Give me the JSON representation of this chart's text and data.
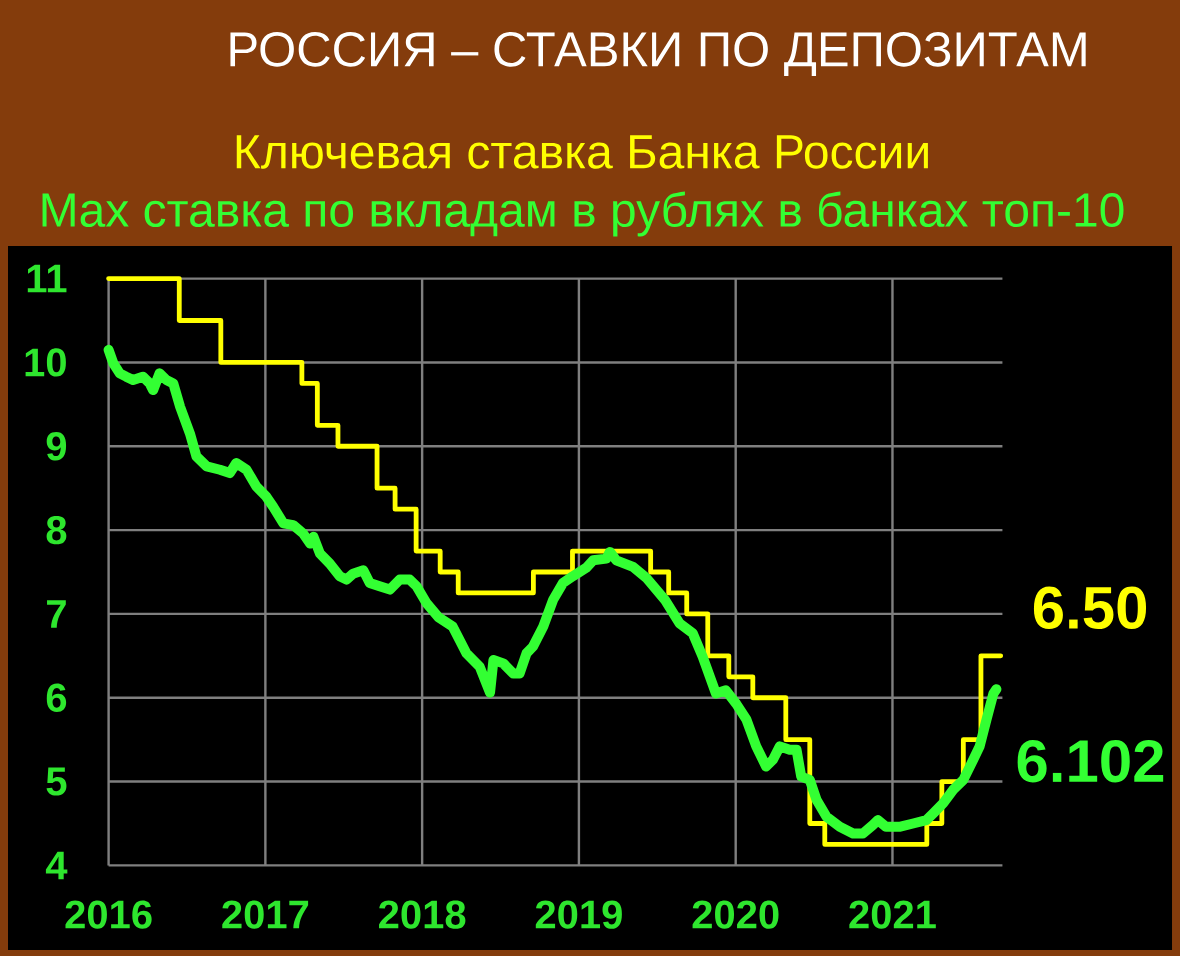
{
  "chart_data": {
    "type": "line",
    "title": "РОССИЯ – СТАВКИ ПО ДЕПОЗИТАМ",
    "legend": "top",
    "grid": true,
    "xlim": [
      "2016-01-01",
      "2021-09-14"
    ],
    "xticks": [
      "2016",
      "2017",
      "2018",
      "2019",
      "2020",
      "2021"
    ],
    "ylim": [
      4,
      11
    ],
    "yticks": [
      4,
      5,
      6,
      7,
      8,
      9,
      10,
      11
    ],
    "series": [
      {
        "name": "Ключевая ставка Банка России",
        "type": "step",
        "color": "#ffff00",
        "x": [
          "2016-01-01",
          "2016-06-14",
          "2016-09-19",
          "2017-03-27",
          "2017-05-02",
          "2017-06-19",
          "2017-09-18",
          "2017-10-30",
          "2017-12-18",
          "2018-02-12",
          "2018-03-26",
          "2018-09-17",
          "2018-12-17",
          "2019-06-17",
          "2019-07-29",
          "2019-09-09",
          "2019-10-28",
          "2019-12-16",
          "2020-02-10",
          "2020-04-27",
          "2020-06-22",
          "2020-07-27",
          "2021-03-22",
          "2021-04-26",
          "2021-06-15",
          "2021-07-26",
          "2021-09-10"
        ],
        "values": [
          11,
          10.5,
          10,
          9.75,
          9.25,
          9,
          8.5,
          8.25,
          7.75,
          7.5,
          7.25,
          7.5,
          7.75,
          7.5,
          7.25,
          7,
          6.5,
          6.25,
          6,
          5.5,
          4.5,
          4.25,
          4.5,
          5,
          5.5,
          6.5,
          6.5
        ],
        "value_labels": [
          null,
          null,
          null,
          null,
          null,
          null,
          null,
          null,
          null,
          null,
          null,
          null,
          null,
          null,
          null,
          null,
          null,
          null,
          null,
          null,
          null,
          null,
          null,
          null,
          null,
          null,
          "6.50"
        ]
      },
      {
        "name": "Max ставка по вкладам в рублях в банках топ-10",
        "color": "#33ff33",
        "x": [
          "2016-01-01",
          "2016-01-12",
          "2016-01-27",
          "2016-02-11",
          "2016-02-27",
          "2016-03-21",
          "2016-04-06",
          "2016-04-14",
          "2016-04-29",
          "2016-05-15",
          "2016-05-31",
          "2016-06-16",
          "2016-07-09",
          "2016-07-24",
          "2016-08-17",
          "2016-09-17",
          "2016-10-10",
          "2016-10-25",
          "2016-11-18",
          "2016-12-11",
          "2017-01-03",
          "2017-01-19",
          "2017-02-12",
          "2017-03-07",
          "2017-03-30",
          "2017-04-15",
          "2017-04-23",
          "2017-05-08",
          "2017-05-31",
          "2017-06-23",
          "2017-07-09",
          "2017-07-24",
          "2017-08-17",
          "2017-09-01",
          "2017-09-24",
          "2017-10-18",
          "2017-11-10",
          "2017-12-03",
          "2017-12-19",
          "2018-01-11",
          "2018-02-08",
          "2018-03-13",
          "2018-04-14",
          "2018-05-15",
          "2018-06-08",
          "2018-06-16",
          "2018-07-09",
          "2018-08-01",
          "2018-08-16",
          "2018-09-01",
          "2018-09-16",
          "2018-10-10",
          "2018-11-02",
          "2018-11-25",
          "2018-12-18",
          "2019-01-18",
          "2019-02-03",
          "2019-03-06",
          "2019-03-14",
          "2019-03-29",
          "2019-05-07",
          "2019-06-07",
          "2019-07-20",
          "2019-08-23",
          "2019-09-23",
          "2019-10-16",
          "2019-11-16",
          "2019-12-09",
          "2020-01-02",
          "2020-01-26",
          "2020-02-18",
          "2020-03-12",
          "2020-03-28",
          "2020-04-13",
          "2020-05-06",
          "2020-05-22",
          "2020-06-02",
          "2020-06-22",
          "2020-07-08",
          "2020-07-31",
          "2020-08-31",
          "2020-10-01",
          "2020-10-24",
          "2020-11-16",
          "2020-11-28",
          "2020-12-17",
          "2021-01-17",
          "2021-02-18",
          "2021-03-21",
          "2021-04-06",
          "2021-04-29",
          "2021-05-22",
          "2021-06-15",
          "2021-07-08",
          "2021-07-23",
          "2021-08-08",
          "2021-08-24",
          "2021-08-31"
        ],
        "values": [
          10.15,
          9.99,
          9.87,
          9.83,
          9.79,
          9.83,
          9.75,
          9.67,
          9.87,
          9.79,
          9.75,
          9.47,
          9.15,
          8.88,
          8.76,
          8.72,
          8.68,
          8.8,
          8.72,
          8.52,
          8.4,
          8.28,
          8.08,
          8.06,
          7.96,
          7.84,
          7.92,
          7.72,
          7.6,
          7.45,
          7.41,
          7.48,
          7.52,
          7.37,
          7.33,
          7.29,
          7.41,
          7.41,
          7.33,
          7.13,
          6.96,
          6.85,
          6.53,
          6.37,
          6.06,
          6.45,
          6.41,
          6.29,
          6.29,
          6.53,
          6.61,
          6.85,
          7.17,
          7.37,
          7.45,
          7.55,
          7.64,
          7.66,
          7.74,
          7.64,
          7.56,
          7.43,
          7.17,
          6.89,
          6.77,
          6.49,
          6.05,
          6.09,
          5.93,
          5.74,
          5.42,
          5.18,
          5.26,
          5.42,
          5.38,
          5.38,
          5.06,
          5.02,
          4.78,
          4.58,
          4.46,
          4.38,
          4.38,
          4.48,
          4.54,
          4.46,
          4.46,
          4.5,
          4.54,
          4.62,
          4.74,
          4.9,
          5.02,
          5.26,
          5.42,
          5.74,
          6.05,
          6.102
        ],
        "value_labels": [
          null,
          null,
          null,
          null,
          null,
          null,
          null,
          null,
          null,
          null,
          null,
          null,
          null,
          null,
          null,
          null,
          null,
          null,
          null,
          null,
          null,
          null,
          null,
          null,
          null,
          null,
          null,
          null,
          null,
          null,
          null,
          null,
          null,
          null,
          null,
          null,
          null,
          null,
          null,
          null,
          null,
          null,
          null,
          null,
          null,
          null,
          null,
          null,
          null,
          null,
          null,
          null,
          null,
          null,
          null,
          null,
          null,
          null,
          null,
          null,
          null,
          null,
          null,
          null,
          null,
          null,
          null,
          null,
          null,
          null,
          null,
          null,
          null,
          null,
          null,
          null,
          null,
          null,
          null,
          null,
          null,
          null,
          null,
          null,
          null,
          null,
          null,
          null,
          null,
          null,
          null,
          null,
          null,
          null,
          null,
          null,
          null,
          "6.102"
        ]
      }
    ]
  }
}
